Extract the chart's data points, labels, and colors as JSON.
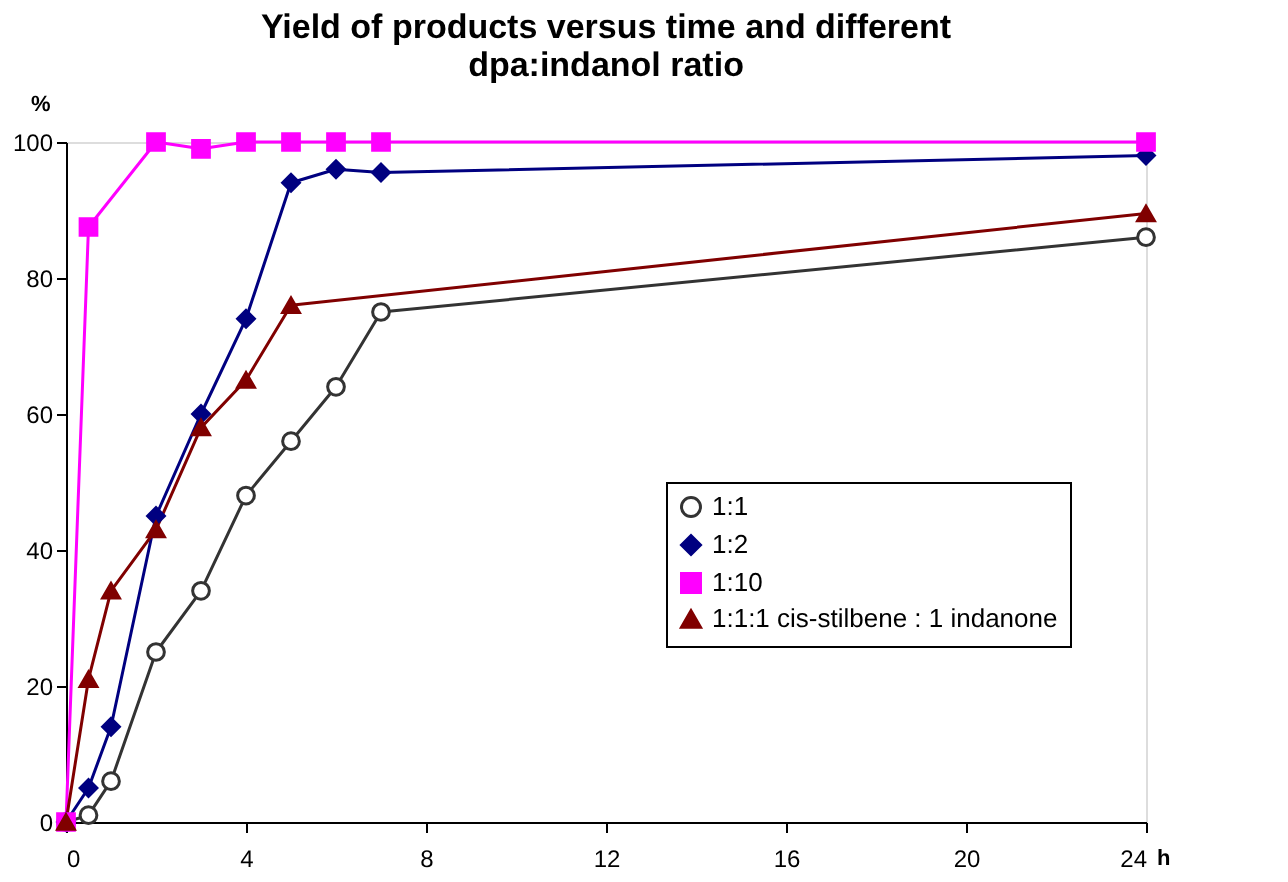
{
  "chart_data": {
    "type": "line",
    "title": "Yield of products versus time and different dpa:indanol ratio",
    "xlabel": "h",
    "ylabel": "%",
    "xlim": [
      0,
      24
    ],
    "xticks": [
      0,
      4,
      8,
      12,
      16,
      20,
      24
    ],
    "ylim": [
      0,
      100
    ],
    "yticks": [
      0,
      20,
      40,
      60,
      80,
      100
    ],
    "grid": false,
    "legend": "right",
    "series": [
      {
        "name": "1:1",
        "color": "#333333",
        "marker": "circle",
        "x": [
          0,
          0.5,
          1,
          2,
          3,
          4,
          5,
          6,
          7,
          24
        ],
        "values": [
          0,
          1,
          6,
          25,
          34,
          48,
          56,
          64,
          75,
          86
        ]
      },
      {
        "name": "1:2",
        "color": "#000080",
        "marker": "diamond",
        "x": [
          0,
          0.5,
          1,
          2,
          3,
          4,
          5,
          6,
          7,
          24
        ],
        "values": [
          0,
          5,
          14,
          45,
          60,
          74,
          94,
          96,
          95.5,
          98
        ]
      },
      {
        "name": "1:10",
        "color": "#ff00ff",
        "marker": "square",
        "x": [
          0,
          0.5,
          2,
          3,
          4,
          5,
          6,
          7,
          24
        ],
        "values": [
          0,
          87.5,
          100,
          99,
          100,
          100,
          100,
          100,
          100
        ]
      },
      {
        "name": "1:1:1 cis-stilbene : 1 indanone",
        "color": "#800000",
        "marker": "triangle",
        "x": [
          0,
          0.5,
          1,
          2,
          3,
          4,
          5,
          24
        ],
        "values": [
          0,
          21,
          34,
          43,
          58,
          65,
          76,
          89.5
        ]
      }
    ]
  }
}
